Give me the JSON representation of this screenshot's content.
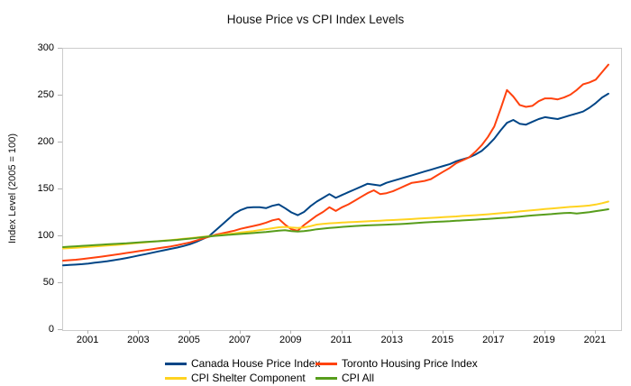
{
  "chart_data": {
    "type": "line",
    "title": "House Price vs CPI Index Levels",
    "xlabel": "",
    "ylabel": "Index Level (2005 = 100)",
    "ylim": [
      0,
      300
    ],
    "xlim": [
      2000,
      2022
    ],
    "y_ticks": [
      0,
      50,
      100,
      150,
      200,
      250,
      300
    ],
    "x_ticks": [
      2001,
      2003,
      2005,
      2007,
      2009,
      2011,
      2013,
      2015,
      2017,
      2019,
      2021
    ],
    "grid": false,
    "legend_position": "bottom",
    "plot_border_color": "#cccccc",
    "x_start": 2000,
    "x_step": 0.25,
    "series": [
      {
        "name": "Canada House Price Index",
        "color": "#004586",
        "values": [
          69,
          69.4,
          69.8,
          70.3,
          71,
          71.8,
          72.6,
          73.5,
          74.5,
          75.6,
          76.8,
          78.2,
          79.6,
          81,
          82.4,
          83.8,
          85.2,
          86.6,
          88,
          89.6,
          91.5,
          94,
          97,
          100,
          106,
          112,
          118,
          124,
          128,
          130.5,
          131,
          131,
          130,
          132.5,
          134,
          130,
          125.5,
          122.5,
          126,
          132,
          137,
          141,
          145,
          141,
          144,
          147,
          150,
          153,
          156,
          155,
          154,
          157,
          159,
          161,
          163,
          165,
          167,
          169,
          171,
          173,
          175,
          177,
          180,
          182,
          184,
          187,
          191,
          197,
          204,
          213,
          221,
          224,
          220,
          219,
          222,
          225,
          227,
          226,
          225,
          227,
          229,
          231,
          233,
          237,
          242,
          248,
          252
        ]
      },
      {
        "name": "Toronto Housing Price Index",
        "color": "#ff420e",
        "values": [
          74,
          74.5,
          75,
          75.8,
          76.5,
          77.4,
          78.3,
          79.2,
          80.2,
          81.2,
          82.2,
          83.2,
          84.2,
          85.2,
          86.2,
          87.2,
          88.2,
          89.2,
          90.5,
          92,
          93.5,
          95.5,
          97.5,
          99.5,
          101.5,
          103,
          104.5,
          106,
          108,
          109.5,
          111,
          112.5,
          114.5,
          117,
          118.5,
          112.5,
          107.5,
          106,
          112,
          117,
          122,
          126,
          131,
          127,
          131,
          134,
          138,
          142,
          146,
          149,
          145,
          146,
          148,
          151,
          154,
          157,
          158,
          159,
          161,
          165,
          169,
          173,
          178,
          181,
          184,
          190,
          197,
          206,
          217,
          236,
          256,
          249,
          240,
          238,
          239,
          244,
          247,
          247,
          246,
          248,
          251,
          256,
          262,
          264,
          267,
          275,
          283
        ]
      },
      {
        "name": "CPI Shelter Component",
        "color": "#ffd320",
        "values": [
          87,
          87.4,
          87.8,
          88.2,
          88.7,
          89.1,
          89.6,
          90.1,
          90.6,
          91.2,
          91.8,
          92.4,
          93,
          93.6,
          94.2,
          94.8,
          95.4,
          96,
          96.6,
          97.3,
          98,
          98.7,
          99.4,
          100.1,
          100.8,
          101.6,
          102.4,
          103.2,
          104,
          104.8,
          105.6,
          106.6,
          107.6,
          108.6,
          109.6,
          110,
          109.3,
          108.8,
          109.5,
          110.8,
          112.5,
          113.2,
          113.8,
          114.2,
          114.6,
          115,
          115.3,
          115.6,
          116,
          116.3,
          116.6,
          117,
          117.3,
          117.7,
          118,
          118.4,
          118.8,
          119.2,
          119.6,
          120,
          120.4,
          120.8,
          121.2,
          121.7,
          122.1,
          122.5,
          123,
          123.5,
          124,
          124.6,
          125.2,
          125.8,
          126.5,
          127.1,
          127.8,
          128.4,
          129,
          129.6,
          130.2,
          130.8,
          131.3,
          131.7,
          132.2,
          132.8,
          133.8,
          135.3,
          137
        ]
      },
      {
        "name": "CPI All",
        "color": "#579d1c",
        "values": [
          88.5,
          88.9,
          89.3,
          89.8,
          90.2,
          90.6,
          91,
          91.4,
          91.8,
          92.2,
          92.5,
          93,
          93.5,
          93.9,
          94.3,
          94.7,
          95.2,
          95.7,
          96.2,
          96.8,
          97.5,
          98.2,
          99,
          99.8,
          100.5,
          101,
          101.5,
          102,
          102.5,
          103,
          103.5,
          104,
          104.5,
          105.3,
          106,
          106.5,
          105.5,
          105,
          105.5,
          106.3,
          107.5,
          108.2,
          108.8,
          109.4,
          110,
          110.5,
          111,
          111.3,
          111.6,
          111.9,
          112.1,
          112.4,
          112.7,
          113,
          113.4,
          113.8,
          114.3,
          114.8,
          115.2,
          115.5,
          115.8,
          116.1,
          116.5,
          116.9,
          117.3,
          117.7,
          118.2,
          118.6,
          119,
          119.4,
          119.8,
          120.4,
          121,
          121.6,
          122.2,
          122.7,
          123.2,
          123.7,
          124.3,
          124.7,
          125,
          124.2,
          125,
          125.8,
          126.8,
          127.8,
          128.8
        ]
      }
    ]
  }
}
